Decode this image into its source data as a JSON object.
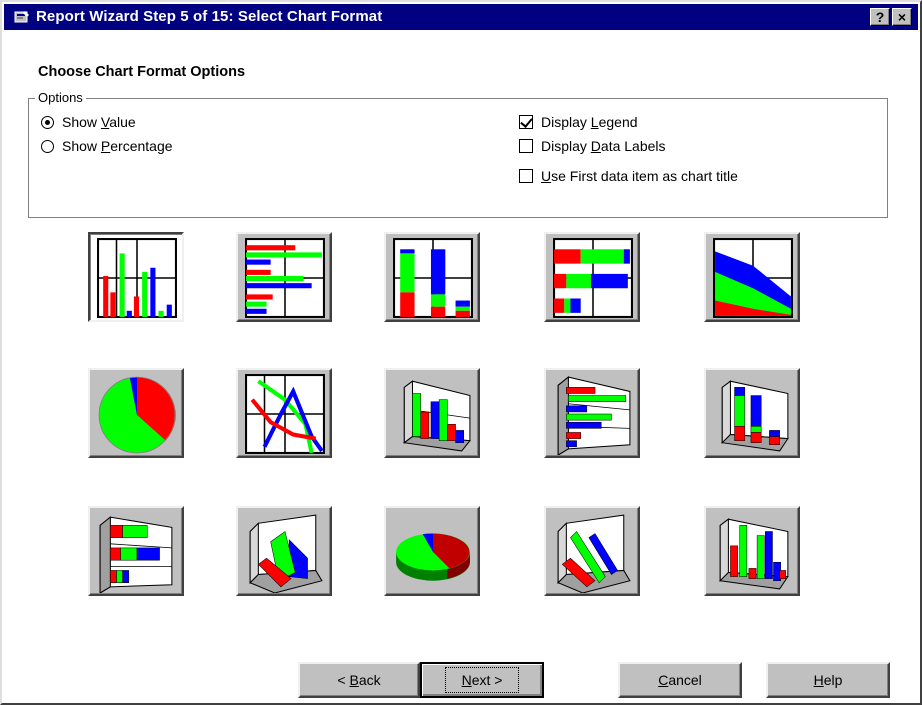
{
  "window": {
    "title": "Report Wizard Step 5 of 15: Select Chart Format",
    "help_button": "?",
    "close_button": "×"
  },
  "heading": "Choose Chart Format Options",
  "options": {
    "group_label": "Options",
    "show_value": {
      "before": "Show ",
      "accel": "V",
      "after": "alue",
      "checked": true
    },
    "show_percentage": {
      "before": "Show ",
      "accel": "P",
      "after": "ercentage",
      "checked": false
    },
    "display_legend": {
      "before": "Display ",
      "accel": "L",
      "after": "egend",
      "checked": true
    },
    "display_data_labels": {
      "before": "Display ",
      "accel": "D",
      "after": "ata Labels",
      "checked": false
    },
    "first_item_title": {
      "before": "",
      "accel": "U",
      "after": "se First data item as chart title",
      "checked": false
    }
  },
  "chart_types": [
    {
      "name": "bar-chart",
      "selected": true
    },
    {
      "name": "horizontal-bar-chart",
      "selected": false
    },
    {
      "name": "stacked-bar-chart",
      "selected": false
    },
    {
      "name": "stacked-horizontal-bar-chart",
      "selected": false
    },
    {
      "name": "area-chart",
      "selected": false
    },
    {
      "name": "pie-chart",
      "selected": false
    },
    {
      "name": "line-chart",
      "selected": false
    },
    {
      "name": "3d-bar-chart",
      "selected": false
    },
    {
      "name": "3d-horizontal-bar-chart",
      "selected": false
    },
    {
      "name": "3d-stacked-bar-chart",
      "selected": false
    },
    {
      "name": "3d-stacked-horizontal-bar-chart",
      "selected": false
    },
    {
      "name": "3d-area-chart",
      "selected": false
    },
    {
      "name": "3d-pie-chart",
      "selected": false
    },
    {
      "name": "3d-line-chart",
      "selected": false
    },
    {
      "name": "3d-column-chart",
      "selected": false
    }
  ],
  "buttons": {
    "back": {
      "before": "< ",
      "accel": "B",
      "after": "ack"
    },
    "next": {
      "before": "",
      "accel": "N",
      "after": "ext >"
    },
    "cancel": {
      "before": "",
      "accel": "C",
      "after": "ancel"
    },
    "help": {
      "before": "",
      "accel": "H",
      "after": "elp"
    }
  },
  "colors": {
    "titlebar": "#000080",
    "face": "#c0c0c0",
    "red": "#ff0000",
    "green": "#00ff00",
    "blue": "#0000ff"
  }
}
